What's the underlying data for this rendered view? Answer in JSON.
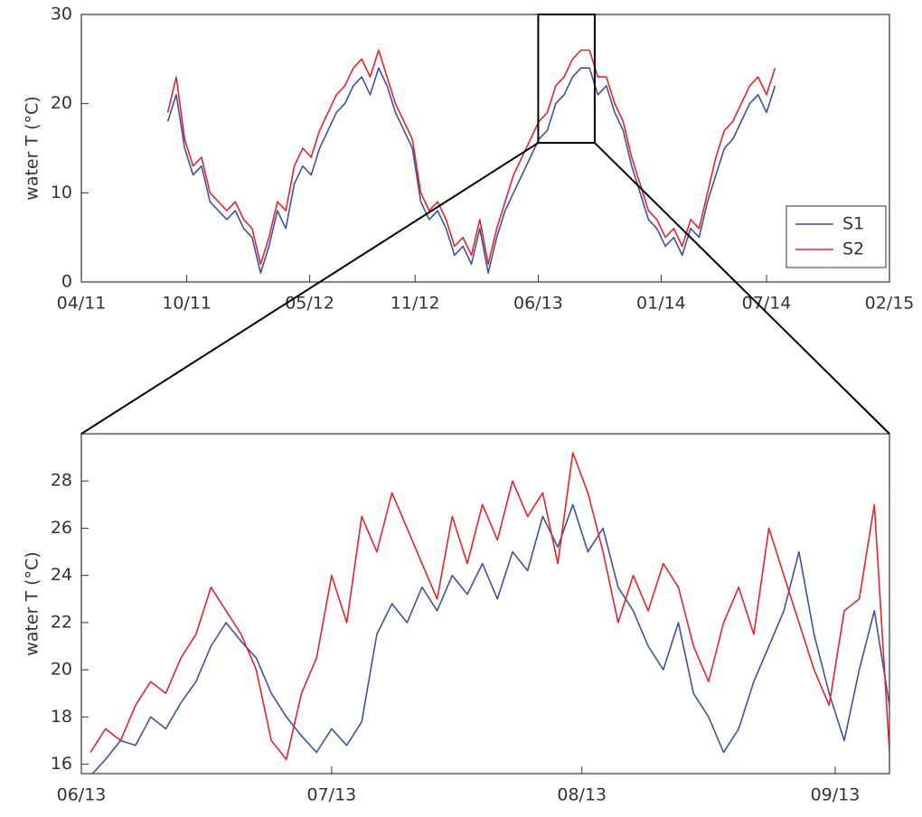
{
  "chart_data": [
    {
      "type": "line",
      "ylabel": "water T (°C)",
      "xlim": [
        2011.25,
        2015.083
      ],
      "ylim": [
        0,
        30
      ],
      "xticks": [
        {
          "value": 2011.25,
          "label": "04/11"
        },
        {
          "value": 2011.75,
          "label": "10/11"
        },
        {
          "value": 2012.333,
          "label": "05/12"
        },
        {
          "value": 2012.833,
          "label": "11/12"
        },
        {
          "value": 2013.417,
          "label": "06/13"
        },
        {
          "value": 2014.0,
          "label": "01/14"
        },
        {
          "value": 2014.5,
          "label": "07/14"
        },
        {
          "value": 2015.083,
          "label": "02/15"
        }
      ],
      "yticks": [
        0,
        10,
        20,
        30
      ],
      "legend": "lower right",
      "x": [
        2011.66,
        2011.7,
        2011.74,
        2011.78,
        2011.82,
        2011.86,
        2011.9,
        2011.94,
        2011.98,
        2012.02,
        2012.06,
        2012.1,
        2012.14,
        2012.18,
        2012.22,
        2012.26,
        2012.3,
        2012.34,
        2012.38,
        2012.42,
        2012.46,
        2012.5,
        2012.54,
        2012.58,
        2012.62,
        2012.66,
        2012.7,
        2012.74,
        2012.78,
        2012.82,
        2012.86,
        2012.9,
        2012.94,
        2012.98,
        2013.02,
        2013.06,
        2013.1,
        2013.14,
        2013.18,
        2013.22,
        2013.26,
        2013.3,
        2013.34,
        2013.38,
        2013.42,
        2013.46,
        2013.5,
        2013.54,
        2013.58,
        2013.62,
        2013.66,
        2013.7,
        2013.74,
        2013.78,
        2013.82,
        2013.86,
        2013.9,
        2013.94,
        2013.98,
        2014.02,
        2014.06,
        2014.1,
        2014.14,
        2014.18,
        2014.22,
        2014.26,
        2014.3,
        2014.34,
        2014.38,
        2014.42,
        2014.46,
        2014.5,
        2014.54
      ],
      "series": [
        {
          "name": "S1",
          "color": "#3f51a3",
          "values": [
            18,
            21,
            15,
            12,
            13,
            9,
            8,
            7,
            8,
            6,
            5,
            1,
            4,
            8,
            6,
            11,
            13,
            12,
            15,
            17,
            19,
            20,
            22,
            23,
            21,
            24,
            22,
            19,
            17,
            15,
            9,
            7,
            8,
            6,
            3,
            4,
            2,
            6,
            1,
            5,
            8,
            10,
            12,
            14,
            16,
            17,
            20,
            21,
            23,
            24,
            24,
            21,
            22,
            19,
            17,
            13,
            10,
            7,
            6,
            4,
            5,
            3,
            6,
            5,
            9,
            12,
            15,
            16,
            18,
            20,
            21,
            19,
            22
          ]
        },
        {
          "name": "S2",
          "color": "#e0262d",
          "values": [
            19,
            23,
            16,
            13,
            14,
            10,
            9,
            8,
            9,
            7,
            6,
            2,
            5,
            9,
            8,
            13,
            15,
            14,
            17,
            19,
            21,
            22,
            24,
            25,
            23,
            26,
            23,
            20,
            18,
            16,
            10,
            8,
            9,
            7,
            4,
            5,
            3,
            7,
            2,
            6,
            9,
            12,
            14,
            16,
            18,
            19,
            22,
            23,
            25,
            26,
            26,
            23,
            23,
            20,
            18,
            14,
            11,
            8,
            7,
            5,
            6,
            4,
            7,
            6,
            10,
            14,
            17,
            18,
            20,
            22,
            23,
            21,
            24
          ]
        }
      ]
    },
    {
      "type": "line",
      "ylabel": "water T (°C)",
      "xlim": [
        2013.417,
        2013.685
      ],
      "ylim": [
        15.6,
        30
      ],
      "xticks": [
        {
          "value": 2013.417,
          "label": "06/13"
        },
        {
          "value": 2013.5,
          "label": "07/13"
        },
        {
          "value": 2013.583,
          "label": "08/13"
        },
        {
          "value": 2013.667,
          "label": "09/13"
        }
      ],
      "yticks": [
        16,
        18,
        20,
        22,
        24,
        26,
        28
      ],
      "x": [
        2013.42,
        2013.425,
        2013.43,
        2013.435,
        2013.44,
        2013.445,
        2013.45,
        2013.455,
        2013.46,
        2013.465,
        2013.47,
        2013.475,
        2013.48,
        2013.485,
        2013.49,
        2013.495,
        2013.5,
        2013.505,
        2013.51,
        2013.515,
        2013.52,
        2013.525,
        2013.53,
        2013.535,
        2013.54,
        2013.545,
        2013.55,
        2013.555,
        2013.56,
        2013.565,
        2013.57,
        2013.575,
        2013.58,
        2013.585,
        2013.59,
        2013.595,
        2013.6,
        2013.605,
        2013.61,
        2013.615,
        2013.62,
        2013.625,
        2013.63,
        2013.635,
        2013.64,
        2013.645,
        2013.65,
        2013.655,
        2013.66,
        2013.665,
        2013.67,
        2013.675,
        2013.68,
        2013.685
      ],
      "series": [
        {
          "color": "#3f51a3",
          "values": [
            15.5,
            16.2,
            17.0,
            16.8,
            18.0,
            17.5,
            18.6,
            19.5,
            21.0,
            22.0,
            21.2,
            20.5,
            19.0,
            18.0,
            17.2,
            16.5,
            17.5,
            16.8,
            17.8,
            21.5,
            22.8,
            22.0,
            23.5,
            22.5,
            24.0,
            23.2,
            24.5,
            23.0,
            25.0,
            24.2,
            26.5,
            25.2,
            27.0,
            25.0,
            26.0,
            23.5,
            22.5,
            21.0,
            20.0,
            22.0,
            19.0,
            18.0,
            16.5,
            17.5,
            19.5,
            21.0,
            22.5,
            25.0,
            21.5,
            19.0,
            17.0,
            20.0,
            22.5,
            18.5
          ]
        },
        {
          "color": "#e0262d",
          "values": [
            16.5,
            17.5,
            17.0,
            18.5,
            19.5,
            19.0,
            20.5,
            21.5,
            23.5,
            22.5,
            21.5,
            20.0,
            17.0,
            16.2,
            19.0,
            20.5,
            24.0,
            22.0,
            26.5,
            25.0,
            27.5,
            26.0,
            24.5,
            23.0,
            26.5,
            24.5,
            27.0,
            25.5,
            28.0,
            26.5,
            27.5,
            24.5,
            29.2,
            27.5,
            25.0,
            22.0,
            24.0,
            22.5,
            24.5,
            23.5,
            21.0,
            19.5,
            22.0,
            23.5,
            21.5,
            26.0,
            24.0,
            22.0,
            20.0,
            18.5,
            22.5,
            23.0,
            27.0,
            16.5
          ]
        }
      ]
    }
  ]
}
